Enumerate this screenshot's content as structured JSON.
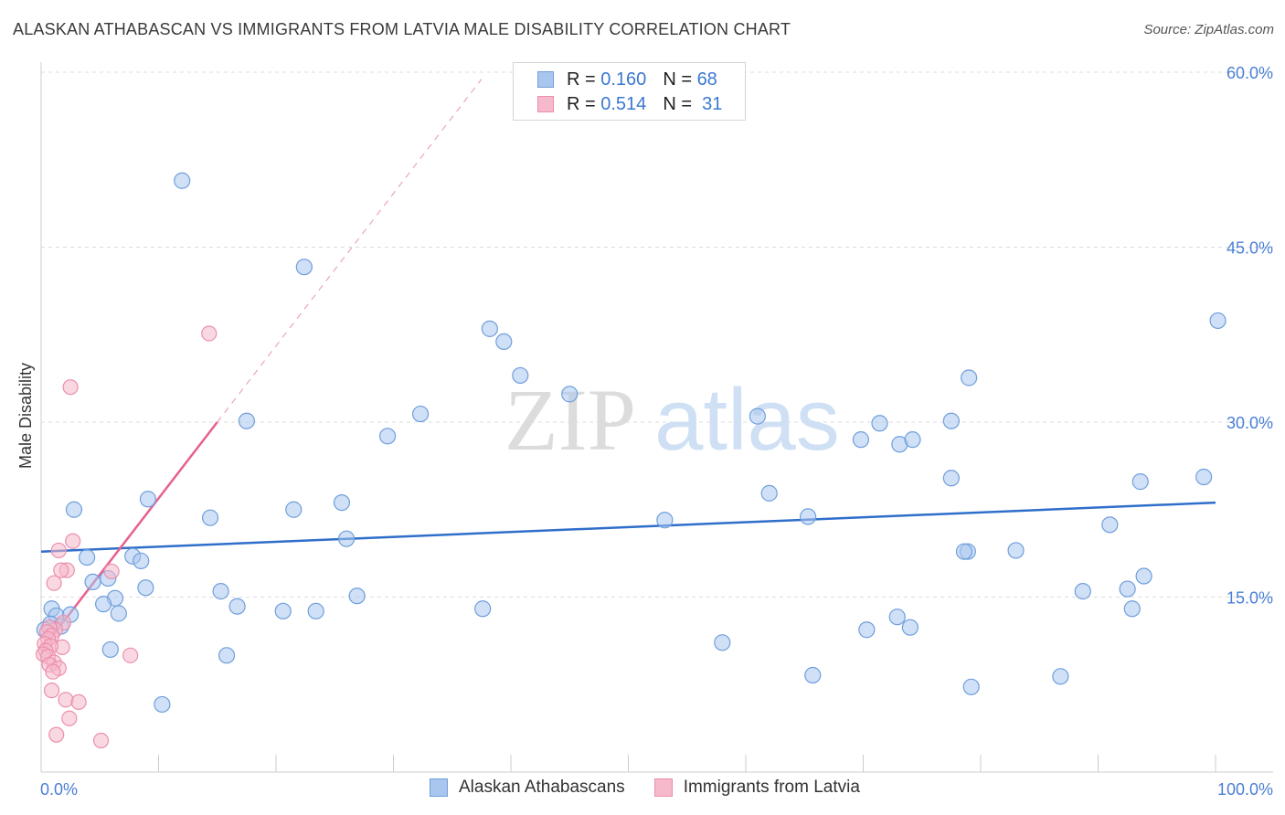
{
  "header": {
    "title": "ALASKAN ATHABASCAN VS IMMIGRANTS FROM LATVIA MALE DISABILITY CORRELATION CHART",
    "source": "Source: ZipAtlas.com"
  },
  "legend_top": {
    "rows": [
      {
        "r_label": "R =",
        "r_value": "0.160",
        "n_label": "N =",
        "n_value": "68"
      },
      {
        "r_label": "R =",
        "r_value": "0.514",
        "n_label": "N =",
        "n_value": "31"
      }
    ]
  },
  "legend_bottom": {
    "items": [
      "Alaskan Athabascans",
      "Immigrants from Latvia"
    ]
  },
  "watermark": {
    "zip": "ZIP",
    "atlas": "atlas"
  },
  "colors": {
    "blue_fill": "#a9c6ef",
    "blue_stroke": "#6f9fdc",
    "blue_line": "#2f6ecb",
    "pink_fill": "#f6b8cb",
    "pink_stroke": "#eb8fac",
    "pink_line": "#e8608c",
    "tick_text": "#4a7fd4",
    "grid": "#dcdcdc"
  },
  "chart_data": {
    "type": "scatter",
    "title": "ALASKAN ATHABASCAN VS IMMIGRANTS FROM LATVIA MALE DISABILITY CORRELATION CHART",
    "xlabel": "",
    "ylabel": "Male Disability",
    "xlim": [
      0,
      100
    ],
    "ylim": [
      0,
      60
    ],
    "x_tick_labels": [
      "0.0%",
      "100.0%"
    ],
    "y_ticks": [
      15,
      30,
      45,
      60
    ],
    "y_tick_labels": [
      "15.0%",
      "30.0%",
      "45.0%",
      "60.0%"
    ],
    "grid": true,
    "legend_position": "top-center",
    "series": [
      {
        "name": "Alaskan Athabascans",
        "color": "#a9c6ef",
        "r": 0.16,
        "n": 68,
        "trend": {
          "x": [
            0,
            100
          ],
          "y": [
            18.9,
            23.1
          ],
          "style": "solid"
        },
        "points": [
          [
            12.0,
            50.7
          ],
          [
            22.4,
            43.3
          ],
          [
            38.2,
            38.0
          ],
          [
            39.4,
            36.9
          ],
          [
            40.8,
            34.0
          ],
          [
            45.0,
            32.4
          ],
          [
            32.3,
            30.7
          ],
          [
            29.5,
            28.8
          ],
          [
            17.5,
            30.1
          ],
          [
            61.0,
            30.5
          ],
          [
            71.4,
            29.9
          ],
          [
            77.5,
            30.1
          ],
          [
            69.8,
            28.5
          ],
          [
            73.1,
            28.1
          ],
          [
            74.2,
            28.5
          ],
          [
            79.0,
            33.8
          ],
          [
            100.2,
            38.7
          ],
          [
            99.0,
            25.3
          ],
          [
            93.6,
            24.9
          ],
          [
            77.5,
            25.2
          ],
          [
            62.0,
            23.9
          ],
          [
            65.3,
            21.9
          ],
          [
            53.1,
            21.6
          ],
          [
            14.4,
            21.8
          ],
          [
            25.6,
            23.1
          ],
          [
            21.5,
            22.5
          ],
          [
            9.1,
            23.4
          ],
          [
            2.8,
            22.5
          ],
          [
            26.0,
            20.0
          ],
          [
            91.0,
            21.2
          ],
          [
            83.0,
            19.0
          ],
          [
            78.9,
            18.9
          ],
          [
            78.6,
            18.9
          ],
          [
            3.9,
            18.4
          ],
          [
            7.8,
            18.5
          ],
          [
            8.5,
            18.1
          ],
          [
            5.7,
            16.6
          ],
          [
            4.4,
            16.3
          ],
          [
            8.9,
            15.8
          ],
          [
            15.3,
            15.5
          ],
          [
            92.5,
            15.7
          ],
          [
            88.7,
            15.5
          ],
          [
            93.9,
            16.8
          ],
          [
            26.9,
            15.1
          ],
          [
            6.3,
            14.9
          ],
          [
            5.3,
            14.4
          ],
          [
            16.7,
            14.2
          ],
          [
            20.6,
            13.8
          ],
          [
            23.4,
            13.8
          ],
          [
            37.6,
            14.0
          ],
          [
            92.9,
            14.0
          ],
          [
            0.9,
            14.0
          ],
          [
            1.3,
            13.4
          ],
          [
            2.5,
            13.5
          ],
          [
            6.6,
            13.6
          ],
          [
            0.8,
            12.7
          ],
          [
            1.7,
            12.5
          ],
          [
            0.3,
            12.2
          ],
          [
            72.9,
            13.3
          ],
          [
            74.0,
            12.4
          ],
          [
            70.3,
            12.2
          ],
          [
            58.0,
            11.1
          ],
          [
            5.9,
            10.5
          ],
          [
            15.8,
            10.0
          ],
          [
            65.7,
            8.3
          ],
          [
            79.2,
            7.3
          ],
          [
            86.8,
            8.2
          ],
          [
            10.3,
            5.8
          ]
        ]
      },
      {
        "name": "Immigrants from Latvia",
        "color": "#f6b8cb",
        "r": 0.514,
        "n": 31,
        "trend": {
          "x": [
            0,
            15.0
          ],
          "y": [
            10.4,
            30.0
          ],
          "style": "solid",
          "extended": {
            "x": [
              15.0,
              37.5
            ],
            "y": [
              30.0,
              59.4
            ],
            "style": "dashed"
          }
        },
        "points": [
          [
            14.3,
            37.6
          ],
          [
            2.5,
            33.0
          ],
          [
            2.7,
            19.8
          ],
          [
            1.5,
            19.0
          ],
          [
            2.2,
            17.3
          ],
          [
            1.7,
            17.3
          ],
          [
            6.0,
            17.2
          ],
          [
            1.1,
            16.2
          ],
          [
            1.9,
            12.8
          ],
          [
            1.2,
            12.2
          ],
          [
            0.7,
            12.4
          ],
          [
            0.5,
            12.0
          ],
          [
            0.9,
            11.7
          ],
          [
            0.6,
            11.4
          ],
          [
            0.3,
            11.0
          ],
          [
            1.8,
            10.7
          ],
          [
            0.8,
            10.8
          ],
          [
            0.4,
            10.4
          ],
          [
            0.2,
            10.1
          ],
          [
            0.6,
            9.9
          ],
          [
            7.6,
            10.0
          ],
          [
            1.1,
            9.4
          ],
          [
            0.7,
            9.2
          ],
          [
            1.5,
            8.9
          ],
          [
            1.0,
            8.6
          ],
          [
            0.9,
            7.0
          ],
          [
            2.1,
            6.2
          ],
          [
            3.2,
            6.0
          ],
          [
            2.4,
            4.6
          ],
          [
            1.3,
            3.2
          ],
          [
            5.1,
            2.7
          ]
        ]
      }
    ]
  }
}
